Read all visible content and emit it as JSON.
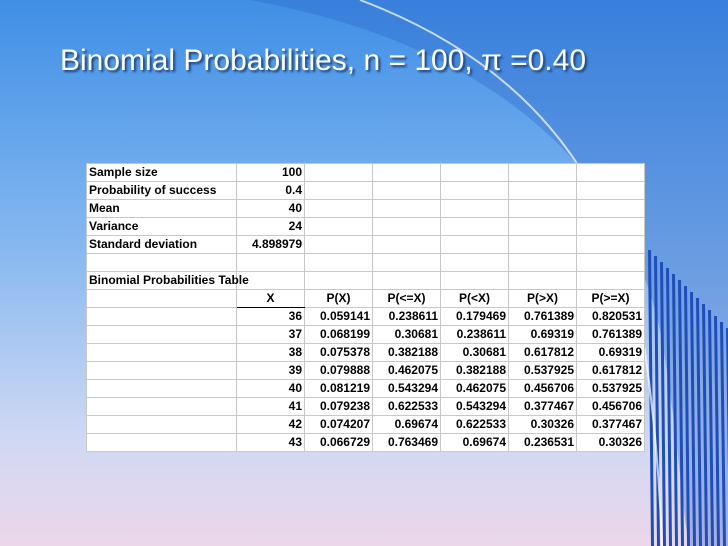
{
  "slide": {
    "title": "Binomial Probabilities, n = 100, π =0.40"
  },
  "summary": [
    {
      "label": "Sample size",
      "value": "100"
    },
    {
      "label": "Probability of success",
      "value": "0.4"
    },
    {
      "label": "Mean",
      "value": "40"
    },
    {
      "label": "Variance",
      "value": "24"
    },
    {
      "label": "Standard deviation",
      "value": "4.898979"
    }
  ],
  "table": {
    "title": "Binomial Probabilities Table",
    "columns": [
      "X",
      "P(X)",
      "P(<=X)",
      "P(<X)",
      "P(>X)",
      "P(>=X)"
    ],
    "rows": [
      [
        "36",
        "0.059141",
        "0.238611",
        "0.179469",
        "0.761389",
        "0.820531"
      ],
      [
        "37",
        "0.068199",
        "0.30681",
        "0.238611",
        "0.69319",
        "0.761389"
      ],
      [
        "38",
        "0.075378",
        "0.382188",
        "0.30681",
        "0.617812",
        "0.69319"
      ],
      [
        "39",
        "0.079888",
        "0.462075",
        "0.382188",
        "0.537925",
        "0.617812"
      ],
      [
        "40",
        "0.081219",
        "0.543294",
        "0.462075",
        "0.456706",
        "0.537925"
      ],
      [
        "41",
        "0.079238",
        "0.622533",
        "0.543294",
        "0.377467",
        "0.456706"
      ],
      [
        "42",
        "0.074207",
        "0.69674",
        "0.622533",
        "0.30326",
        "0.377467"
      ],
      [
        "43",
        "0.066729",
        "0.763469",
        "0.69674",
        "0.236531",
        "0.30326"
      ]
    ]
  },
  "colors": {
    "background_top": "#3f8fe6",
    "background_bottom": "#ecd7ea",
    "stripe": "#1e4fb8",
    "title": "#ffffff"
  }
}
